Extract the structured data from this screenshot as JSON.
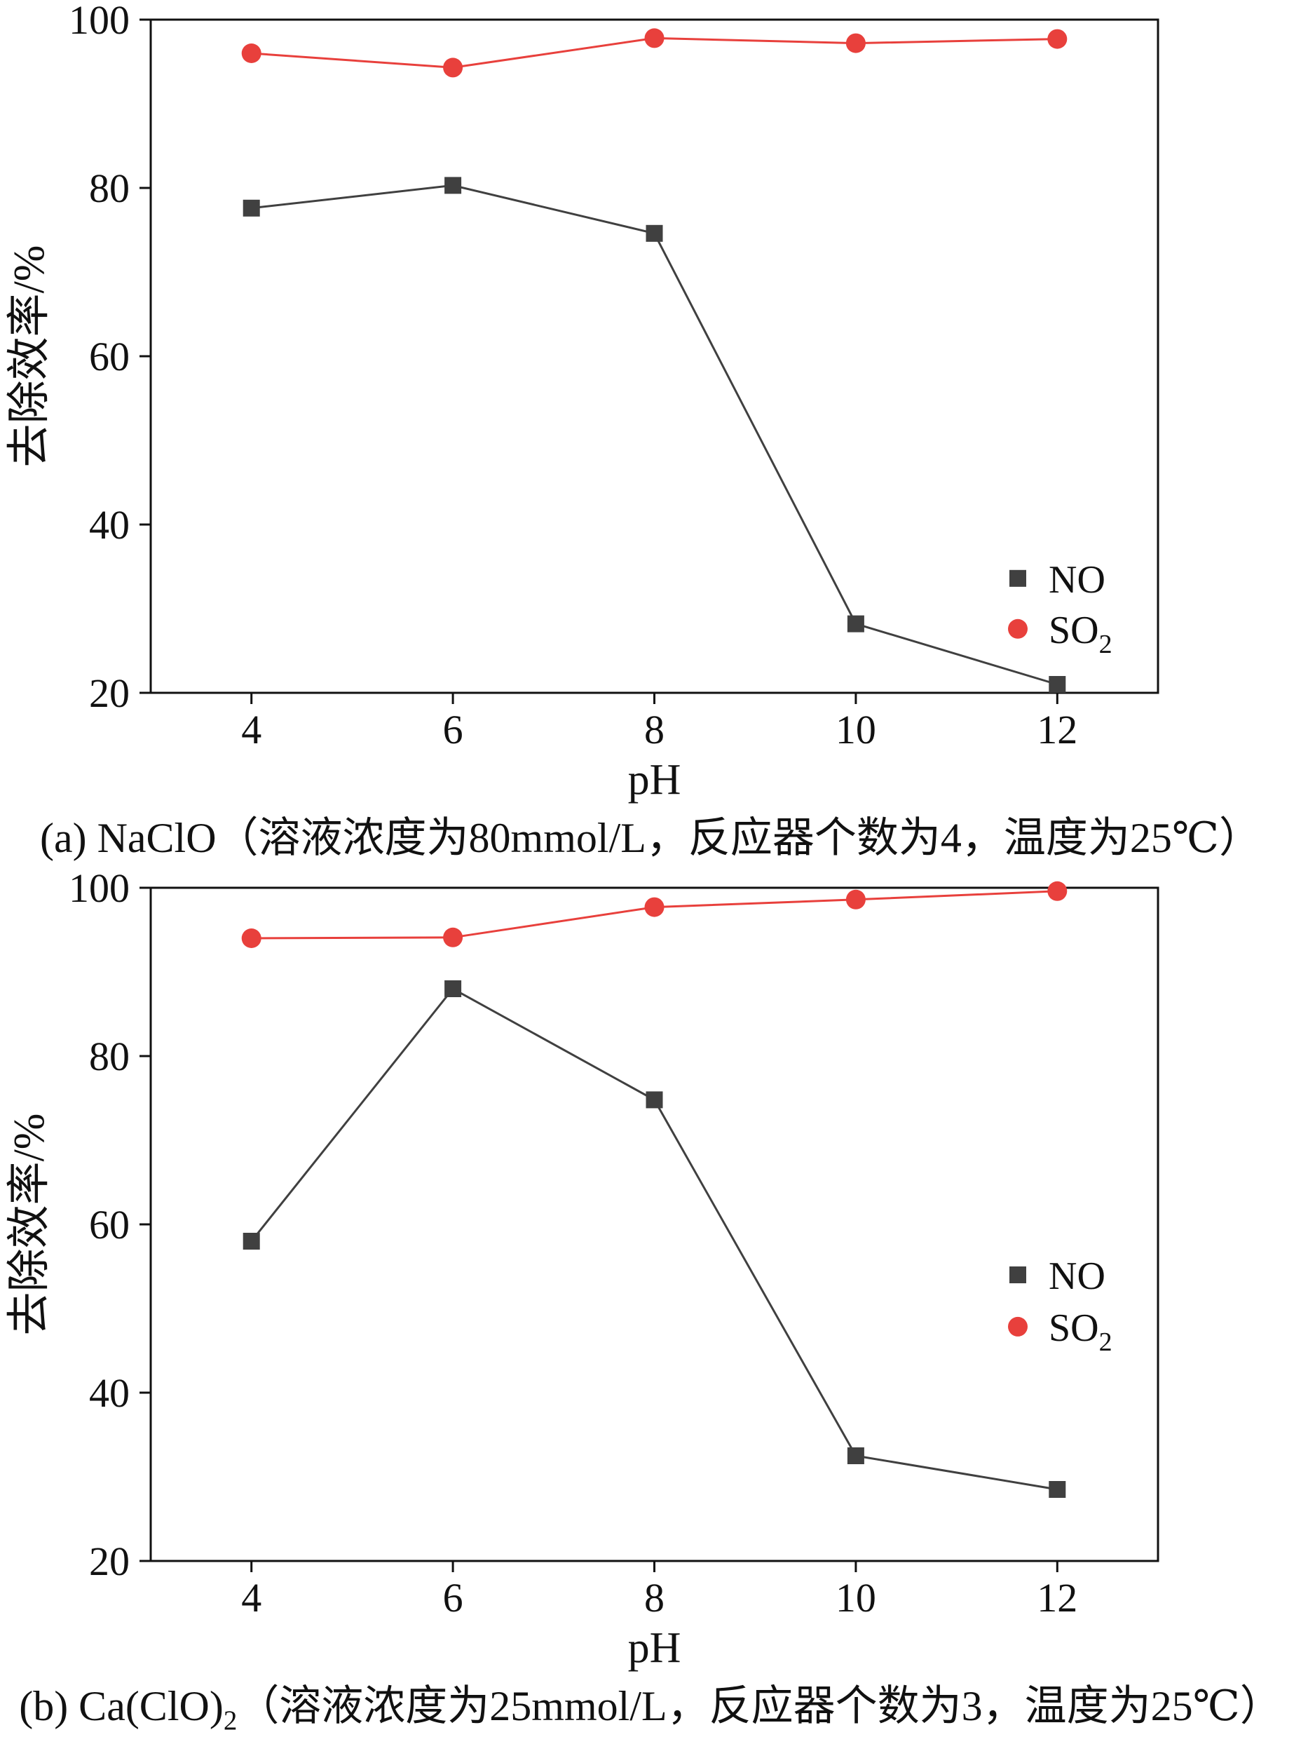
{
  "page": {
    "background": "#ffffff",
    "text_color": "#111111"
  },
  "chart_data": [
    {
      "type": "line",
      "title": "(a) NaClO（溶液浓度为80mmol/L，反应器个数为4，温度为25℃）",
      "caption_parts": [
        {
          "t": "(a) NaClO（溶液浓度为80mmol/L，反应器个数为4，温度为25℃）"
        }
      ],
      "xlabel": "pH",
      "ylabel": "去除效率/%",
      "x": [
        4,
        6,
        8,
        10,
        12
      ],
      "xticks": [
        4,
        6,
        8,
        10,
        12
      ],
      "yticks": [
        20,
        40,
        60,
        80,
        100
      ],
      "xlim": [
        3,
        13
      ],
      "ylim": [
        20,
        100
      ],
      "grid": false,
      "legend_position": "inside-lower-right",
      "series": [
        {
          "name": "NO",
          "label_parts": [
            {
              "t": "NO"
            }
          ],
          "marker": "square",
          "color": "#404040",
          "values": [
            77.6,
            80.3,
            74.6,
            28.2,
            21.0
          ]
        },
        {
          "name": "SO2",
          "label_parts": [
            {
              "t": "SO"
            },
            {
              "t": "2",
              "sub": true
            }
          ],
          "marker": "circle",
          "color": "#e8403c",
          "values": [
            96.0,
            94.3,
            97.8,
            97.2,
            97.7
          ]
        }
      ]
    },
    {
      "type": "line",
      "title": "(b) Ca(ClO)2（溶液浓度为25mmol/L，反应器个数为3，温度为25℃）",
      "caption_parts": [
        {
          "t": "(b) Ca(ClO)"
        },
        {
          "t": "2",
          "sub": true
        },
        {
          "t": "（溶液浓度为25mmol/L，反应器个数为3，温度为25℃）"
        }
      ],
      "xlabel": "pH",
      "ylabel": "去除效率/%",
      "x": [
        4,
        6,
        8,
        10,
        12
      ],
      "xticks": [
        4,
        6,
        8,
        10,
        12
      ],
      "yticks": [
        20,
        40,
        60,
        80,
        100
      ],
      "xlim": [
        3,
        13
      ],
      "ylim": [
        20,
        100
      ],
      "grid": false,
      "legend_position": "inside-middle-right",
      "series": [
        {
          "name": "NO",
          "label_parts": [
            {
              "t": "NO"
            }
          ],
          "marker": "square",
          "color": "#404040",
          "values": [
            58.0,
            88.0,
            74.8,
            32.5,
            28.5
          ]
        },
        {
          "name": "SO2",
          "label_parts": [
            {
              "t": "SO"
            },
            {
              "t": "2",
              "sub": true
            }
          ],
          "marker": "circle",
          "color": "#e8403c",
          "values": [
            94.0,
            94.1,
            97.7,
            98.6,
            99.6
          ]
        }
      ]
    }
  ]
}
